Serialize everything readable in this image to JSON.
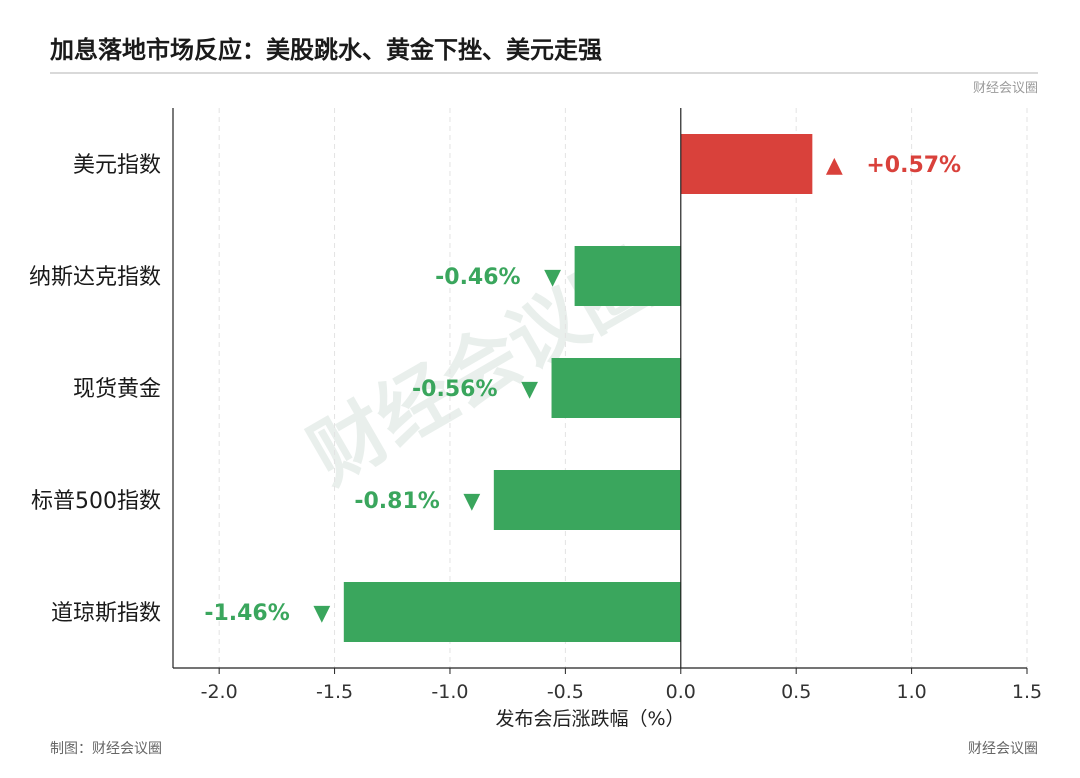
{
  "title": "加息落地市场反应：美股跳水、黄金下挫、美元走强",
  "source_top": "财经会议圈",
  "footer": {
    "left": "制图：财经会议圈",
    "right": "财经会议圈"
  },
  "watermark": "财经会议圈",
  "colors": {
    "positive": "#d9413b",
    "negative": "#3aa65d"
  },
  "chart_data": {
    "type": "bar",
    "orientation": "horizontal",
    "categories": [
      "美元指数",
      "纳斯达克指数",
      "现货黄金",
      "标普500指数",
      "道琼斯指数"
    ],
    "values": [
      0.57,
      -0.46,
      -0.56,
      -0.81,
      -1.46
    ],
    "value_labels": [
      "+0.57%",
      "-0.46%",
      "-0.56%",
      "-0.81%",
      "-1.46%"
    ],
    "markers": [
      "▲",
      "▼",
      "▼",
      "▼",
      "▼"
    ],
    "xlabel": "发布会后涨跌幅（%）",
    "ylabel": "",
    "xlim": [
      -2.2,
      1.5
    ],
    "xticks": [
      -2.0,
      -1.5,
      -1.0,
      -0.5,
      0.0,
      0.5,
      1.0,
      1.5
    ],
    "xtick_labels": [
      "-2.0",
      "-1.5",
      "-1.0",
      "-0.5",
      "0.0",
      "0.5",
      "1.0",
      "1.5"
    ],
    "grid": "vertical-dashed"
  }
}
